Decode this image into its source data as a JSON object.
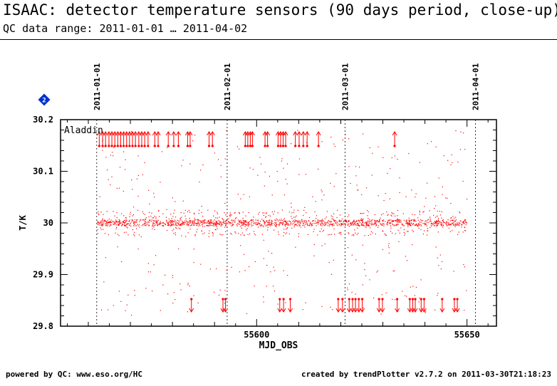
{
  "header": {
    "title": "ISAAC: detector temperature sensors (90 days period, close-up)",
    "subtitle": "QC data range: 2011-01-01 … 2011-04-02"
  },
  "footer": {
    "left": "powered by QC: www.eso.org/HC",
    "right": "created by trendPlotter v2.7.2 on 2011-03-30T21:18:23"
  },
  "chart_data": {
    "type": "scatter",
    "title": "",
    "xlabel": "MJD_OBS",
    "ylabel": "T/K",
    "xlim": [
      55553.4,
      55657.0
    ],
    "ylim": [
      29.8,
      30.2
    ],
    "x_ticks": [
      55600,
      55650
    ],
    "y_ticks": [
      29.8,
      29.9,
      30,
      30.1,
      30.2
    ],
    "grid": false,
    "annotation": "Aladdin",
    "badge": "2",
    "date_markers": [
      {
        "label": "2011-01-01",
        "mjd": 55562
      },
      {
        "label": "2011-02-01",
        "mjd": 55593
      },
      {
        "label": "2011-03-01",
        "mjd": 55621
      },
      {
        "label": "2011-04-01",
        "mjd": 55652
      }
    ],
    "series": [
      {
        "color": "#ff0000",
        "x_range": [
          55562.2,
          55650.0
        ],
        "baseline": 30.0,
        "note_count": 2000,
        "points_sample": [
          {
            "x": 55565,
            "y": 30.0
          },
          {
            "x": 55570,
            "y": 29.99
          },
          {
            "x": 55575,
            "y": 30.01
          },
          {
            "x": 55580,
            "y": 30.0
          },
          {
            "x": 55590,
            "y": 30.0
          },
          {
            "x": 55600,
            "y": 30.02
          },
          {
            "x": 55610,
            "y": 29.98
          },
          {
            "x": 55620,
            "y": 30.0
          },
          {
            "x": 55630,
            "y": 30.0
          },
          {
            "x": 55640,
            "y": 30.01
          },
          {
            "x": 55649,
            "y": 30.0
          }
        ]
      }
    ],
    "upper_outlier_mjd": [
      55562.6,
      55563.4,
      55564.1,
      55564.9,
      55565.6,
      55566.3,
      55567.0,
      55567.7,
      55568.4,
      55569.1,
      55569.8,
      55570.5,
      55571.2,
      55572.0,
      55572.7,
      55573.4,
      55574.2,
      55575.8,
      55576.6,
      55579.0,
      55580.3,
      55581.4,
      55583.6,
      55584.2,
      55588.7,
      55589.5,
      55597.3,
      55597.9,
      55598.5,
      55599.0,
      55602.0,
      55602.6,
      55605.1,
      55605.7,
      55606.3,
      55606.9,
      55609.2,
      55610.1,
      55611.1,
      55612.0,
      55614.7,
      55632.8
    ],
    "lower_outlier_mjd": [
      55584.5,
      55592.0,
      55592.6,
      55605.5,
      55606.4,
      55608.0,
      55619.4,
      55620.4,
      55622.0,
      55622.8,
      55623.5,
      55624.3,
      55625.1,
      55629.1,
      55629.9,
      55633.4,
      55636.4,
      55637.1,
      55637.7,
      55639.1,
      55639.8,
      55644.1,
      55647.0,
      55647.7
    ]
  }
}
